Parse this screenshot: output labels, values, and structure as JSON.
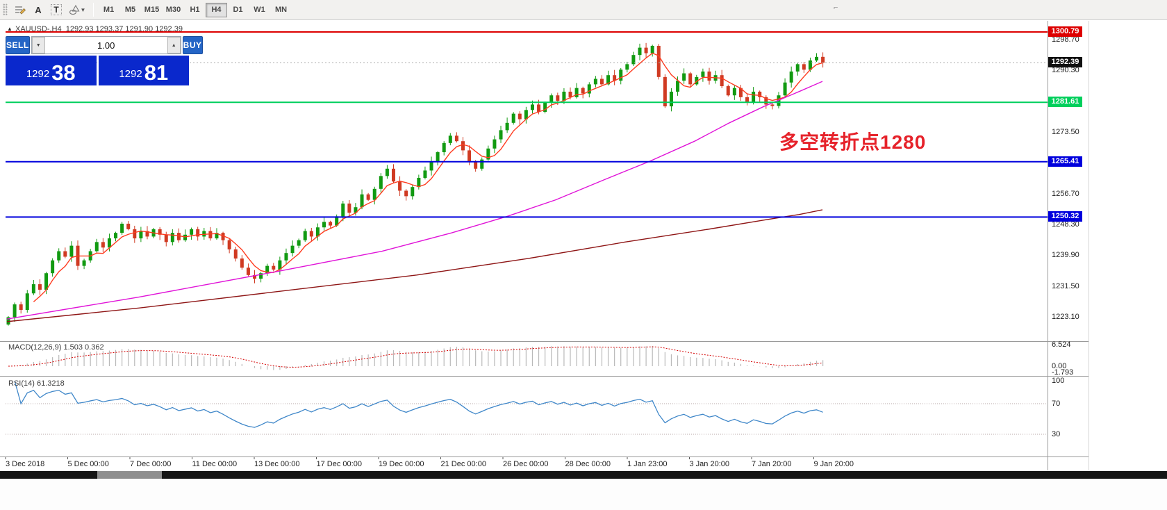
{
  "toolbar": {
    "tools": {
      "text_a": "A",
      "text_t": "T"
    },
    "timeframes": [
      "M1",
      "M5",
      "M15",
      "M30",
      "H1",
      "H4",
      "D1",
      "W1",
      "MN"
    ],
    "active_timeframe": "H4"
  },
  "trade_panel": {
    "sell_label": "SELL",
    "buy_label": "BUY",
    "volume": "1.00",
    "sell_price_major": "1292",
    "sell_price_minor": "38",
    "buy_price_major": "1292",
    "buy_price_minor": "81"
  },
  "chart": {
    "ohlc_header": "XAUUSD-,H4  1292.93 1293.37 1291.90 1292.39",
    "annotation": "多空转折点1280",
    "annotation_color": "#e6222a"
  },
  "price_scale": {
    "ticks": [
      "1298.70",
      "1290.30",
      "1281.90",
      "1273.50",
      "1265.10",
      "1256.70",
      "1248.30",
      "1239.90",
      "1231.50",
      "1223.10"
    ]
  },
  "price_lines": [
    {
      "label": "1300.79",
      "price": 1300.79,
      "color": "#dd0000",
      "style": "solid",
      "width": 2
    },
    {
      "label": "1292.39",
      "price": 1292.39,
      "color": "#111111",
      "style": "bid",
      "width": 1
    },
    {
      "label": "1281.61",
      "price": 1281.61,
      "color": "#00cf5c",
      "style": "solid",
      "width": 2
    },
    {
      "label": "1265.41",
      "price": 1265.41,
      "color": "#0000dd",
      "style": "solid",
      "width": 2
    },
    {
      "label": "1250.32",
      "price": 1250.32,
      "color": "#0000dd",
      "style": "solid",
      "width": 2
    }
  ],
  "indicators": {
    "macd": {
      "label": "MACD(12,26,9) 1.503 0.362",
      "axis": [
        "6.524",
        "0.00",
        "-1.793"
      ],
      "params": [
        12,
        26,
        9
      ]
    },
    "rsi": {
      "label": "RSI(14) 61.3218",
      "axis": [
        "100",
        "70",
        "30"
      ],
      "levels": [
        70,
        30
      ],
      "period": 14
    }
  },
  "time_axis": [
    "3 Dec 2018",
    "5 Dec 00:00",
    "7 Dec 00:00",
    "11 Dec 00:00",
    "13 Dec 00:00",
    "17 Dec 00:00",
    "19 Dec 00:00",
    "21 Dec 00:00",
    "26 Dec 00:00",
    "28 Dec 00:00",
    "1 Jan 23:00",
    "3 Jan 20:00",
    "7 Jan 20:00",
    "9 Jan 20:00"
  ],
  "chart_data": {
    "type": "candlestick",
    "symbol": "XAUUSD",
    "timeframe": "H4",
    "open": "1292.93",
    "high": "1293.37",
    "low": "1291.90",
    "close": "1292.39",
    "y_axis_range": [
      1217.5,
      1303.5
    ],
    "first_open": 1221.0,
    "closes": [
      1223.0,
      1226.5,
      1225.0,
      1229.5,
      1232.0,
      1230.5,
      1235.0,
      1238.5,
      1241.0,
      1239.5,
      1242.5,
      1237.0,
      1238.5,
      1241.0,
      1243.5,
      1242.0,
      1244.5,
      1246.0,
      1248.5,
      1247.0,
      1244.5,
      1246.5,
      1245.0,
      1247.0,
      1245.5,
      1243.5,
      1246.0,
      1244.0,
      1245.5,
      1247.0,
      1245.0,
      1246.5,
      1244.5,
      1246.0,
      1244.0,
      1241.5,
      1239.0,
      1236.5,
      1234.5,
      1233.5,
      1235.0,
      1237.0,
      1236.0,
      1238.5,
      1240.5,
      1242.5,
      1244.0,
      1246.5,
      1245.0,
      1247.5,
      1249.0,
      1248.0,
      1250.5,
      1254.0,
      1251.5,
      1253.0,
      1256.5,
      1255.0,
      1258.0,
      1261.5,
      1263.5,
      1260.0,
      1257.5,
      1256.0,
      1258.5,
      1261.0,
      1263.0,
      1265.5,
      1268.0,
      1270.5,
      1272.5,
      1271.0,
      1268.5,
      1265.5,
      1263.5,
      1266.0,
      1269.0,
      1271.5,
      1274.0,
      1276.0,
      1278.5,
      1277.0,
      1279.5,
      1281.0,
      1279.0,
      1281.5,
      1283.5,
      1282.0,
      1284.5,
      1283.0,
      1285.5,
      1284.0,
      1286.5,
      1288.0,
      1286.5,
      1289.0,
      1287.5,
      1290.5,
      1292.0,
      1294.5,
      1296.5,
      1295.0,
      1297.0,
      1288.5,
      1280.5,
      1284.5,
      1287.5,
      1289.5,
      1286.5,
      1288.5,
      1290.0,
      1287.5,
      1289.0,
      1286.0,
      1283.5,
      1285.5,
      1283.0,
      1281.5,
      1284.5,
      1283.0,
      1281.0,
      1280.6,
      1283.5,
      1287.0,
      1290.0,
      1292.0,
      1290.5,
      1293.0,
      1294.0,
      1292.4
    ],
    "ma_fast_period": 5,
    "ma_mid_points": [
      [
        10,
        1222.5
      ],
      [
        200,
        1228.5
      ],
      [
        400,
        1235.5
      ],
      [
        550,
        1241
      ],
      [
        650,
        1246
      ],
      [
        730,
        1250.5
      ],
      [
        800,
        1255
      ],
      [
        870,
        1260.5
      ],
      [
        935,
        1265.5
      ],
      [
        1000,
        1271
      ],
      [
        1050,
        1276
      ],
      [
        1100,
        1280.5
      ],
      [
        1150,
        1284.5
      ],
      [
        1184,
        1287.3
      ]
    ],
    "ma_slow_points": [
      [
        10,
        1221.8
      ],
      [
        200,
        1225.5
      ],
      [
        400,
        1230.0
      ],
      [
        600,
        1234.5
      ],
      [
        760,
        1239.0
      ],
      [
        900,
        1243.5
      ],
      [
        1020,
        1247.0
      ],
      [
        1100,
        1249.5
      ],
      [
        1150,
        1251.0
      ],
      [
        1184,
        1252.3
      ]
    ],
    "colors": {
      "up": "#119a11",
      "down": "#d03a22",
      "ma_fast": "#ff3b1f",
      "ma_mid": "#e014d8",
      "ma_slow": "#8e1515",
      "macd_hist": "#b9b9b9",
      "macd_signal": "#d40000",
      "rsi_line": "#3f87c9"
    }
  }
}
